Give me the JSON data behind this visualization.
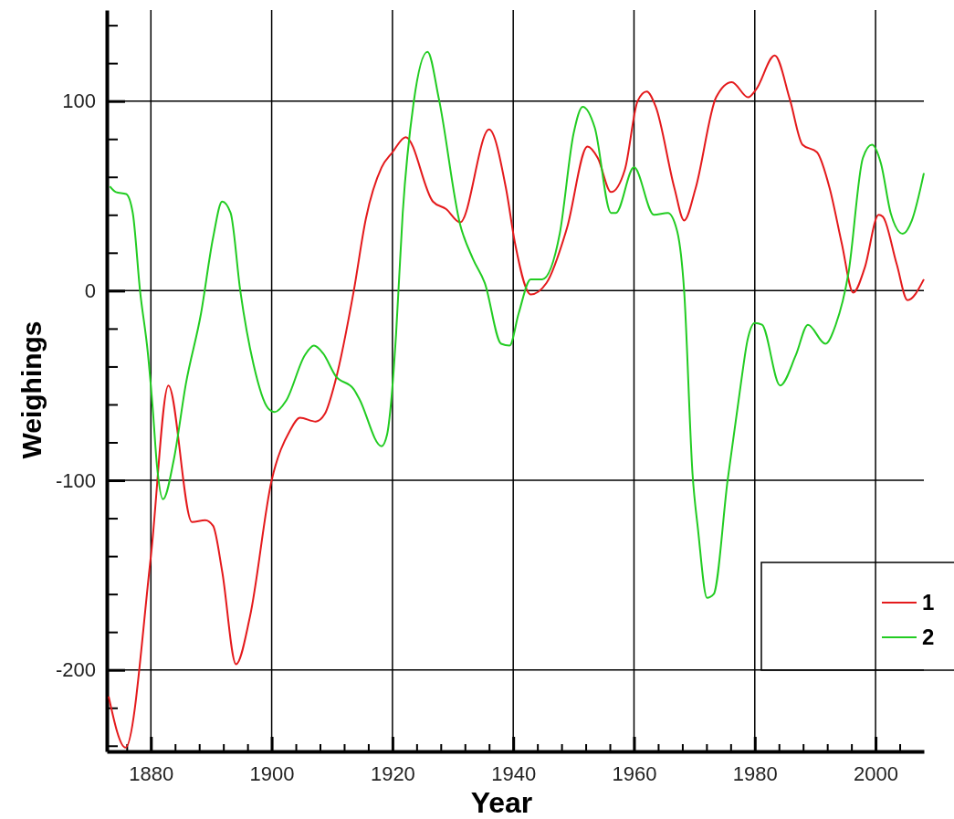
{
  "chart_data": {
    "type": "line",
    "xlabel": "Year",
    "ylabel": "Weighings",
    "xlim": [
      1872.7,
      2008
    ],
    "ylim": [
      -243,
      148
    ],
    "xticks": [
      {
        "value": 1876,
        "label": null
      },
      1880,
      {
        "value": 1884,
        "label": null
      },
      {
        "value": 1888,
        "label": null
      },
      {
        "value": 1892,
        "label": null
      },
      {
        "value": 1896,
        "label": null
      },
      1900,
      {
        "value": 1904,
        "label": null
      },
      {
        "value": 1908,
        "label": null
      },
      {
        "value": 1912,
        "label": null
      },
      {
        "value": 1916,
        "label": null
      },
      1920,
      {
        "value": 1924,
        "label": null
      },
      {
        "value": 1928,
        "label": null
      },
      {
        "value": 1932,
        "label": null
      },
      {
        "value": 1936,
        "label": null
      },
      1940,
      {
        "value": 1944,
        "label": null
      },
      {
        "value": 1948,
        "label": null
      },
      {
        "value": 1952,
        "label": null
      },
      {
        "value": 1956,
        "label": null
      },
      1960,
      {
        "value": 1964,
        "label": null
      },
      {
        "value": 1968,
        "label": null
      },
      {
        "value": 1972,
        "label": null
      },
      {
        "value": 1976,
        "label": null
      },
      1980,
      {
        "value": 1984,
        "label": null
      },
      {
        "value": 1988,
        "label": null
      },
      {
        "value": 1992,
        "label": null
      },
      {
        "value": 1996,
        "label": null
      },
      2000,
      {
        "value": 2004,
        "label": null
      }
    ],
    "yticks": [
      {
        "value": -240,
        "label": null
      },
      {
        "value": -220,
        "label": null
      },
      -200,
      {
        "value": -180,
        "label": null
      },
      {
        "value": -160,
        "label": null
      },
      {
        "value": -140,
        "label": null
      },
      {
        "value": -120,
        "label": null
      },
      -100,
      {
        "value": -80,
        "label": null
      },
      {
        "value": -60,
        "label": null
      },
      {
        "value": -40,
        "label": null
      },
      {
        "value": -20,
        "label": null
      },
      0,
      {
        "value": 20,
        "label": null
      },
      {
        "value": 40,
        "label": null
      },
      {
        "value": 60,
        "label": null
      },
      {
        "value": 80,
        "label": null
      },
      100,
      {
        "value": 120,
        "label": null
      },
      {
        "value": 140,
        "label": null
      }
    ],
    "grid": true,
    "legend": "bottom right",
    "series": [
      {
        "name": "1",
        "color": "#e41a1c",
        "x": [
          1873,
          1875.8,
          1880,
          1882.9,
          1886.8,
          1889,
          1890.3,
          1891.8,
          1894.1,
          1896.4,
          1900,
          1903,
          1904.7,
          1907.3,
          1908.8,
          1910.6,
          1913.6,
          1915.6,
          1918.2,
          1920,
          1922.2,
          1926.7,
          1928.9,
          1931.2,
          1936,
          1938.8,
          1940.3,
          1942.9,
          1945.5,
          1948.9,
          1952.3,
          1954,
          1956.2,
          1958.5,
          1960.6,
          1962.1,
          1963.6,
          1966.7,
          1968.3,
          1970.2,
          1973.6,
          1976.2,
          1978.9,
          1980.2,
          1983.3,
          1985.8,
          1987.9,
          1990.3,
          1992.4,
          1994.4,
          1996.3,
          1998.2,
          2000.5,
          2001.2,
          2003.5,
          2005.3,
          2008
        ],
        "values": [
          -214,
          -241,
          -140,
          -50,
          -122,
          -121,
          -124,
          -148,
          -197,
          -172,
          -100,
          -74,
          -67,
          -69,
          -65,
          -47,
          0,
          38,
          65,
          73,
          81,
          47,
          43,
          36,
          85,
          54,
          25,
          -2,
          4,
          33,
          76,
          70,
          52,
          64,
          100,
          105,
          97,
          54,
          37,
          54,
          102,
          110,
          102,
          106,
          124,
          101,
          77,
          73,
          54,
          25,
          -1,
          12,
          40,
          39,
          14,
          -5,
          6
        ]
      },
      {
        "name": "2",
        "color": "#22cc22",
        "x": [
          1873.2,
          1874.2,
          1875.9,
          1877,
          1878.2,
          1879.5,
          1880.3,
          1881,
          1882,
          1883.8,
          1885.8,
          1888.3,
          1890.3,
          1891.8,
          1893.2,
          1894.8,
          1897,
          1899.4,
          1900.5,
          1902.4,
          1905.5,
          1907,
          1908.5,
          1910.6,
          1913.6,
          1914.5,
          1918.2,
          1919.1,
          1919.8,
          1920.6,
          1921.7,
          1923.5,
          1925.8,
          1927.7,
          1931.2,
          1933.3,
          1935.3,
          1938,
          1939.4,
          1940.9,
          1942.9,
          1944.8,
          1947.7,
          1950,
          1951.5,
          1953.5,
          1956.2,
          1957,
          1960,
          1963.3,
          1965.6,
          1967.1,
          1968.3,
          1969.7,
          1970.6,
          1972.1,
          1973.2,
          1975.5,
          1977.7,
          1978.8,
          1980,
          1981.2,
          1984.2,
          1986.8,
          1988.8,
          1991.7,
          1993.4,
          1995.5,
          1997.9,
          1999.4,
          2000.9,
          2002.5,
          2004.5,
          2006,
          2008
        ],
        "values": [
          55,
          52,
          51,
          41,
          0,
          -33,
          -62,
          -92,
          -110,
          -89,
          -49,
          -12,
          28,
          47,
          41,
          0,
          -39,
          -62,
          -64,
          -58,
          -34,
          -29,
          -33,
          -45,
          -52,
          -57,
          -82,
          -76,
          -58,
          -23,
          41,
          99,
          126,
          101,
          35,
          17,
          4,
          -28,
          -29,
          -12,
          6,
          6,
          30,
          83,
          97,
          86,
          41,
          41,
          65,
          40,
          41,
          32,
          0,
          -97,
          -126,
          -162,
          -160,
          -100,
          -49,
          -26,
          -17,
          -18,
          -50,
          -34,
          -18,
          -28,
          -18,
          9,
          70,
          77,
          67,
          41,
          30,
          37,
          62
        ]
      }
    ]
  }
}
